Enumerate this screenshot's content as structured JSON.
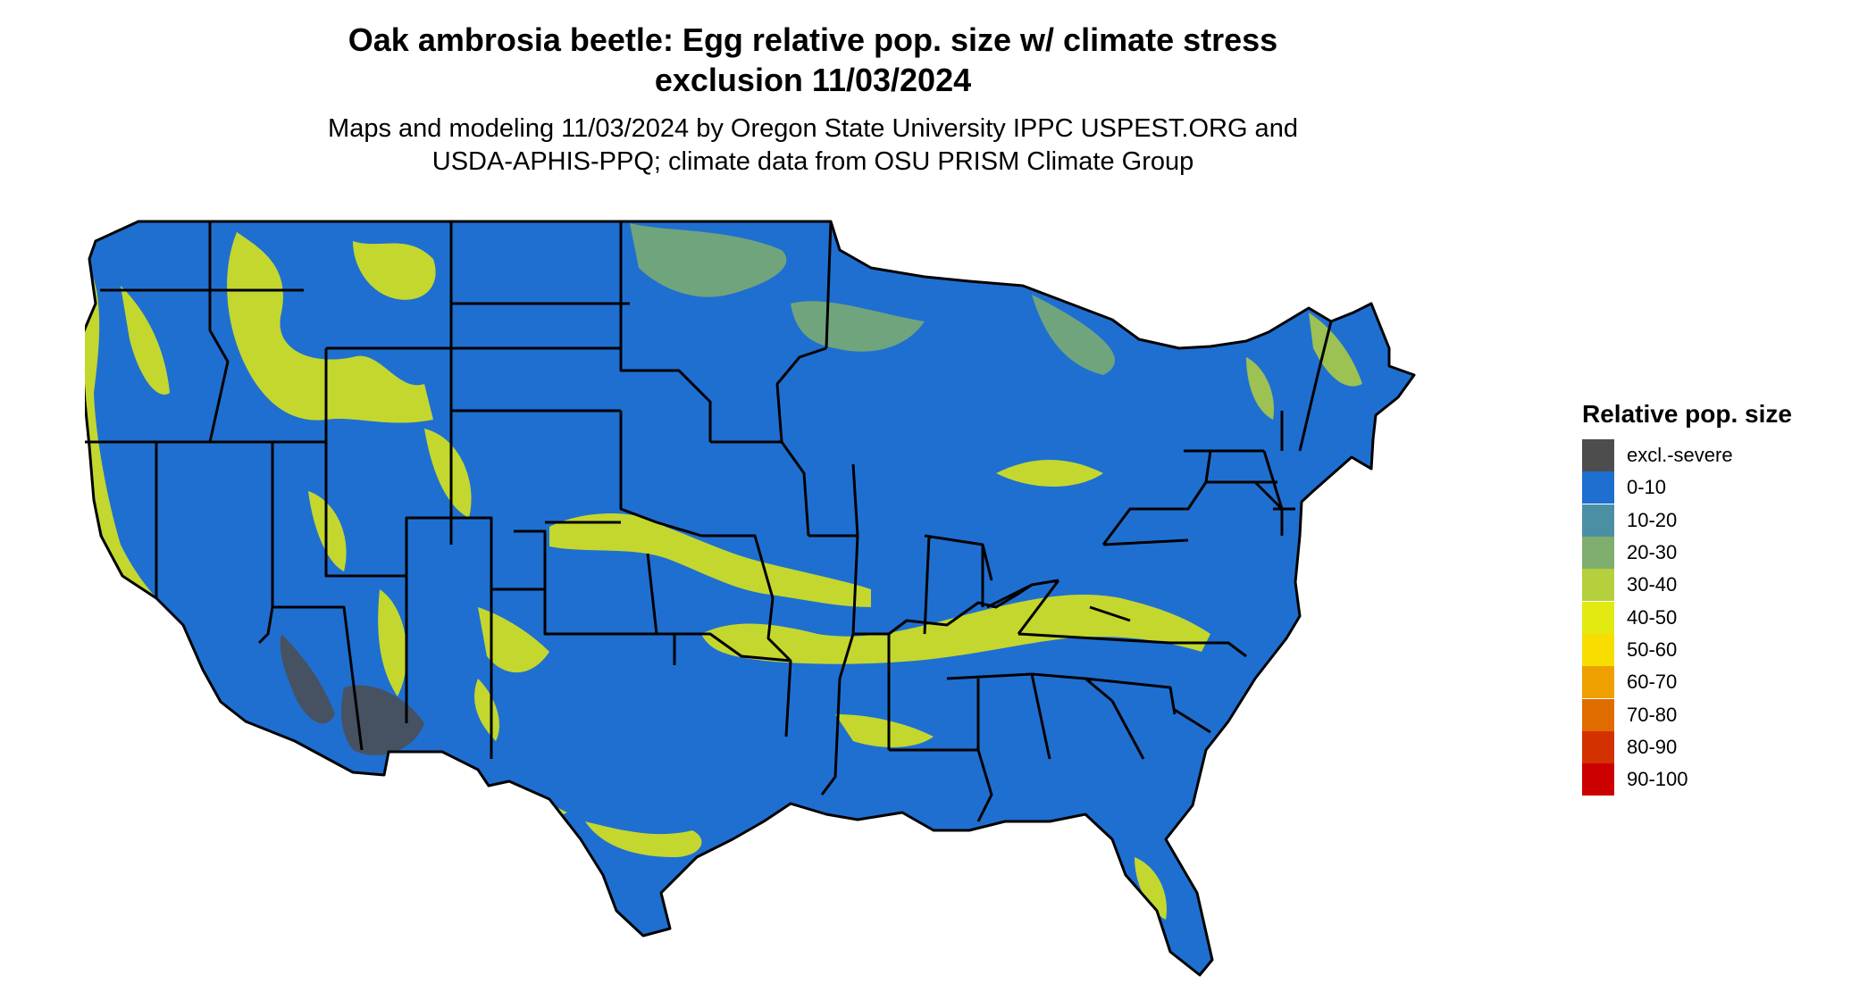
{
  "title_line1": "Oak ambrosia beetle: Egg relative pop. size w/ climate stress",
  "title_line2": "exclusion 11/03/2024",
  "subtitle_line1": "Maps and modeling 11/03/2024 by Oregon State University IPPC USPEST.ORG and",
  "subtitle_line2": "USDA-APHIS-PPQ; climate data from OSU PRISM Climate Group",
  "legend": {
    "title": "Relative pop. size",
    "items": [
      {
        "label": "excl.-severe",
        "color": "#4d4d4d"
      },
      {
        "label": "0-10",
        "color": "#1f6fd1"
      },
      {
        "label": "10-20",
        "color": "#4a8fa3"
      },
      {
        "label": "20-30",
        "color": "#7fae6e"
      },
      {
        "label": "30-40",
        "color": "#b4d03c"
      },
      {
        "label": "40-50",
        "color": "#e2ea12"
      },
      {
        "label": "50-60",
        "color": "#f7de00"
      },
      {
        "label": "60-70",
        "color": "#eea000"
      },
      {
        "label": "70-80",
        "color": "#e06c00"
      },
      {
        "label": "80-90",
        "color": "#d33200"
      },
      {
        "label": "90-100",
        "color": "#cc0000"
      }
    ]
  },
  "map": {
    "base_color": "#1f6fd1",
    "border_color": "#000000",
    "excluded_color": "#4d4d4d",
    "bands": [
      {
        "region": "rocky-mountains-west",
        "class": "40-50"
      },
      {
        "region": "pacific-coast-ranges",
        "class": "40-50"
      },
      {
        "region": "northern-minnesota-upper-michigan",
        "class": "20-30"
      },
      {
        "region": "central-plains-kansas-missouri",
        "class": "40-50"
      },
      {
        "region": "tennessee-kentucky-virginia",
        "class": "40-50"
      },
      {
        "region": "texas-gulf-coast",
        "class": "40-50"
      },
      {
        "region": "central-florida",
        "class": "40-50"
      },
      {
        "region": "northern-new-england",
        "class": "30-40"
      },
      {
        "region": "southern-arizona-colorado-river",
        "class": "excl.-severe"
      }
    ]
  }
}
